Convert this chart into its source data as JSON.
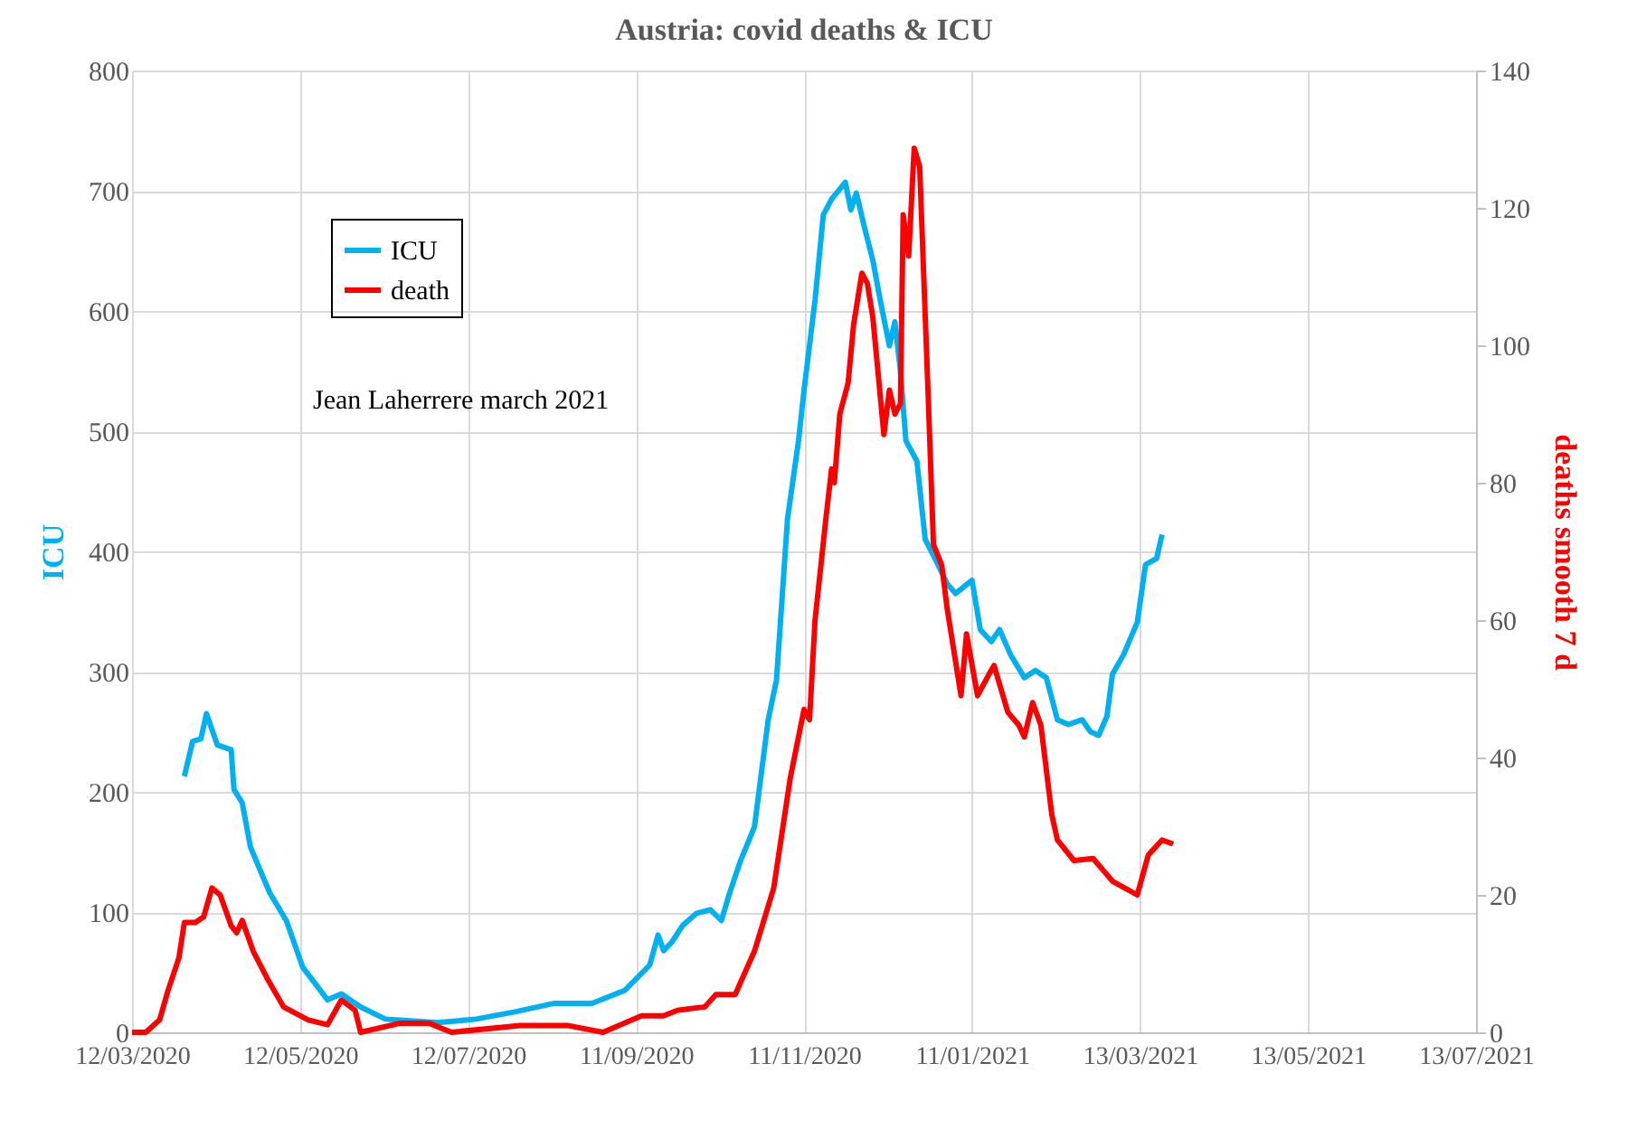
{
  "chart_data": {
    "type": "line",
    "title": "Austria: covid deaths & ICU",
    "ylabel": "ICU",
    "y2label": "deaths smooth 7 d",
    "annotations": [
      "Jean Laherrere march 2021"
    ],
    "xlim": [
      "2020-03-12",
      "2021-07-13"
    ],
    "xticks": [
      {
        "value": "2020-03-12",
        "label": "12/03/2020"
      },
      {
        "value": "2020-05-12",
        "label": "12/05/2020"
      },
      {
        "value": "2020-07-12",
        "label": "12/07/2020"
      },
      {
        "value": "2020-09-11",
        "label": "11/09/2020"
      },
      {
        "value": "2020-11-11",
        "label": "11/11/2020"
      },
      {
        "value": "2021-01-11",
        "label": "11/01/2021"
      },
      {
        "value": "2021-03-13",
        "label": "13/03/2021"
      },
      {
        "value": "2021-05-13",
        "label": "13/05/2021"
      },
      {
        "value": "2021-07-13",
        "label": "13/07/2021"
      }
    ],
    "ylim": [
      0,
      800
    ],
    "yticks": [
      0,
      100,
      200,
      300,
      400,
      500,
      600,
      700,
      800
    ],
    "y2lim": [
      0,
      140
    ],
    "y2ticks": [
      0,
      20,
      40,
      60,
      80,
      100,
      120,
      140
    ],
    "grid": true,
    "legend": "top left",
    "line_style": "solid",
    "marker": "none",
    "series": [
      {
        "name": "ICU",
        "color": "#00b0f0",
        "x": [
          "2020-03-31",
          "2020-04-03",
          "2020-04-06",
          "2020-04-08",
          "2020-04-12",
          "2020-04-17",
          "2020-04-18",
          "2020-04-21",
          "2020-04-24",
          "2020-05-01",
          "2020-05-07",
          "2020-05-13",
          "2020-05-22",
          "2020-05-27",
          "2020-06-03",
          "2020-06-12",
          "2020-07-01",
          "2020-07-15",
          "2020-07-29",
          "2020-08-12",
          "2020-08-26",
          "2020-09-07",
          "2020-09-16",
          "2020-09-19",
          "2020-09-21",
          "2020-09-24",
          "2020-09-28",
          "2020-10-03",
          "2020-10-08",
          "2020-10-12",
          "2020-10-15",
          "2020-10-19",
          "2020-10-24",
          "2020-10-29",
          "2020-11-01",
          "2020-11-05",
          "2020-11-09",
          "2020-11-11",
          "2020-11-15",
          "2020-11-18",
          "2020-11-21",
          "2020-11-26",
          "2020-11-28",
          "2020-11-30",
          "2020-12-03",
          "2020-12-06",
          "2020-12-09",
          "2020-12-12",
          "2020-12-14",
          "2020-12-16",
          "2020-12-18",
          "2020-12-22",
          "2020-12-25",
          "2020-12-29",
          "2021-01-02",
          "2021-01-05",
          "2021-01-11",
          "2021-01-14",
          "2021-01-18",
          "2021-01-21",
          "2021-01-25",
          "2021-01-30",
          "2021-02-03",
          "2021-02-07",
          "2021-02-11",
          "2021-02-15",
          "2021-02-20",
          "2021-02-23",
          "2021-02-26",
          "2021-03-01",
          "2021-03-03",
          "2021-03-07",
          "2021-03-12",
          "2021-03-15",
          "2021-03-19",
          "2021-03-21"
        ],
        "values": [
          213,
          242,
          244,
          265,
          239,
          235,
          202,
          191,
          154,
          116,
          93,
          54,
          27,
          32,
          21,
          11,
          8,
          11,
          17,
          24,
          24,
          35,
          56,
          81,
          68,
          75,
          89,
          99,
          102,
          93,
          116,
          143,
          171,
          260,
          293,
          427,
          492,
          534,
          609,
          680,
          693,
          707,
          684,
          698,
          669,
          642,
          605,
          571,
          591,
          550,
          492,
          475,
          410,
          392,
          373,
          365,
          376,
          335,
          325,
          335,
          314,
          295,
          301,
          295,
          260,
          256,
          260,
          250,
          247,
          263,
          298,
          314,
          341,
          389,
          394,
          414
        ]
      },
      {
        "name": "death",
        "color": "#ff0000",
        "axis": "y2",
        "x": [
          "2020-03-12",
          "2020-03-17",
          "2020-03-22",
          "2020-03-25",
          "2020-03-29",
          "2020-03-31",
          "2020-04-04",
          "2020-04-07",
          "2020-04-10",
          "2020-04-13",
          "2020-04-17",
          "2020-04-19",
          "2020-04-21",
          "2020-04-25",
          "2020-04-30",
          "2020-05-06",
          "2020-05-15",
          "2020-05-22",
          "2020-05-27",
          "2020-06-01",
          "2020-06-03",
          "2020-06-17",
          "2020-06-28",
          "2020-07-06",
          "2020-07-31",
          "2020-08-17",
          "2020-08-30",
          "2020-09-13",
          "2020-09-21",
          "2020-09-26",
          "2020-10-06",
          "2020-10-10",
          "2020-10-17",
          "2020-10-24",
          "2020-10-31",
          "2020-11-06",
          "2020-11-11",
          "2020-11-13",
          "2020-11-15",
          "2020-11-19",
          "2020-11-21",
          "2020-11-22",
          "2020-11-24",
          "2020-11-27",
          "2020-11-29",
          "2020-12-02",
          "2020-12-04",
          "2020-12-06",
          "2020-12-10",
          "2020-12-12",
          "2020-12-14",
          "2020-12-16",
          "2020-12-17",
          "2020-12-19",
          "2020-12-21",
          "2020-12-23",
          "2020-12-26",
          "2020-12-28",
          "2020-12-31",
          "2021-01-02",
          "2021-01-07",
          "2021-01-09",
          "2021-01-13",
          "2021-01-17",
          "2021-01-19",
          "2021-01-24",
          "2021-01-28",
          "2021-01-30",
          "2021-02-02",
          "2021-02-05",
          "2021-02-09",
          "2021-02-11",
          "2021-02-17",
          "2021-02-24",
          "2021-02-28",
          "2021-03-03",
          "2021-03-12",
          "2021-03-16",
          "2021-03-21",
          "2021-03-25"
        ],
        "values": [
          0,
          0,
          1.8,
          6,
          10.8,
          16,
          16,
          16.8,
          21,
          20,
          15.5,
          14.5,
          16.3,
          11.8,
          7.9,
          3.7,
          1.8,
          1.1,
          4.7,
          3.2,
          0,
          1.3,
          1.3,
          0,
          1,
          1,
          0,
          2.4,
          2.4,
          3.2,
          3.7,
          5.5,
          5.5,
          11.8,
          21,
          37,
          47,
          45.5,
          60,
          75,
          82,
          80,
          90,
          94.5,
          103,
          110.5,
          109,
          104,
          87,
          93.5,
          90,
          91.5,
          119,
          113,
          128.7,
          126,
          93.5,
          71,
          68,
          61.6,
          49,
          58,
          49,
          52,
          53.4,
          46.6,
          44.7,
          43,
          48,
          44.7,
          31.6,
          28,
          25,
          25.3,
          23.4,
          22,
          20,
          25.8,
          28,
          27.4
        ]
      }
    ]
  }
}
